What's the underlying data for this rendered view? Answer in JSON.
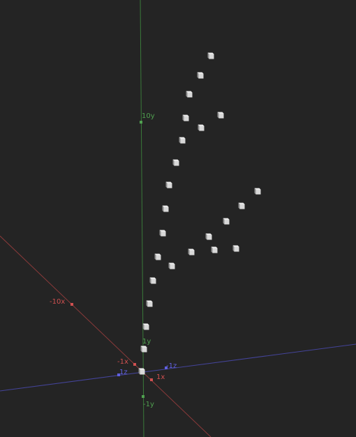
{
  "viewport": {
    "background": "#242424"
  },
  "axes": {
    "x": {
      "color": "#d05050",
      "line_color": "#8a3a3a",
      "labels": {
        "pos1": "1x",
        "neg1": "-1x",
        "neg10": "-10x"
      }
    },
    "y": {
      "color": "#50a050",
      "line_color": "#3a7a3a",
      "labels": {
        "pos1": "1y",
        "neg1": "-1y",
        "pos10": "10y"
      }
    },
    "z": {
      "color": "#6060e0",
      "line_color": "#44449a",
      "labels": {
        "pos1": "1z",
        "neg1": "-1z"
      }
    }
  },
  "points": {
    "color": "#d8d8d8",
    "count": 27,
    "shape": "cube"
  }
}
